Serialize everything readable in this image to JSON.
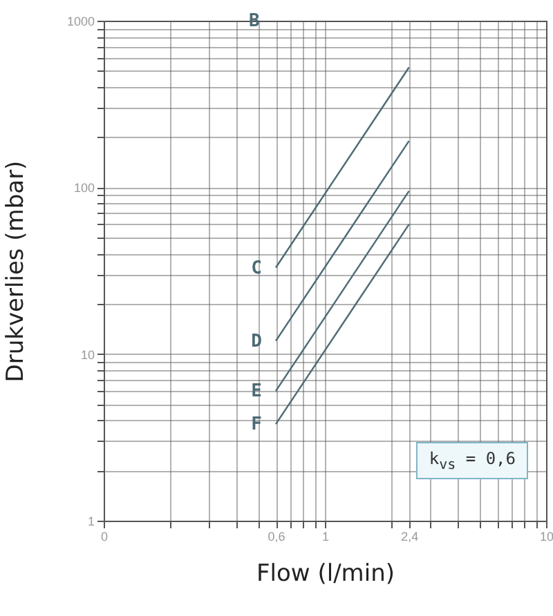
{
  "chart_data": {
    "type": "line",
    "xlabel": "Flow (l/min)",
    "ylabel": "Drukverlies (mbar)",
    "log": "xy",
    "grid": true,
    "marker": "none",
    "x": [
      0.6,
      2.4
    ],
    "series": [
      {
        "name": "C",
        "color": "#4d6a75",
        "values": [
          33,
          525
        ]
      },
      {
        "name": "D",
        "color": "#4d6a75",
        "values": [
          12,
          190
        ]
      },
      {
        "name": "E",
        "color": "#4d6a75",
        "values": [
          6,
          95
        ]
      },
      {
        "name": "F",
        "color": "#4d6a75",
        "values": [
          3.8,
          60
        ]
      }
    ],
    "xlim": [
      0.1,
      10
    ],
    "xticks": [
      {
        "value": 0.1,
        "label": "0"
      },
      {
        "value": 0.2,
        "label": null
      },
      {
        "value": 0.3,
        "label": null
      },
      {
        "value": 0.4,
        "label": null
      },
      {
        "value": 0.5,
        "label": null
      },
      {
        "value": 0.6,
        "label": "0,6"
      },
      {
        "value": 0.7,
        "label": null
      },
      {
        "value": 0.8,
        "label": null
      },
      {
        "value": 0.9,
        "label": null
      },
      1,
      {
        "value": 2,
        "label": null
      },
      {
        "value": 2.4,
        "label": "2,4"
      },
      {
        "value": 3,
        "label": null
      },
      {
        "value": 4,
        "label": null
      },
      {
        "value": 5,
        "label": null
      },
      {
        "value": 6,
        "label": null
      },
      {
        "value": 7,
        "label": null
      },
      {
        "value": 8,
        "label": null
      },
      {
        "value": 9,
        "label": null
      },
      10
    ],
    "ylim": [
      1,
      1000
    ],
    "yticks": [
      1,
      {
        "value": 2,
        "label": null
      },
      {
        "value": 3,
        "label": null
      },
      {
        "value": 4,
        "label": null
      },
      {
        "value": 5,
        "label": null
      },
      {
        "value": 6,
        "label": null
      },
      {
        "value": 7,
        "label": null
      },
      {
        "value": 8,
        "label": null
      },
      {
        "value": 9,
        "label": null
      },
      10,
      {
        "value": 20,
        "label": null
      },
      {
        "value": 30,
        "label": null
      },
      {
        "value": 40,
        "label": null
      },
      {
        "value": 50,
        "label": null
      },
      {
        "value": 60,
        "label": null
      },
      {
        "value": 70,
        "label": null
      },
      {
        "value": 80,
        "label": null
      },
      {
        "value": 90,
        "label": null
      },
      100,
      {
        "value": 200,
        "label": null
      },
      {
        "value": 300,
        "label": null
      },
      {
        "value": 400,
        "label": null
      },
      {
        "value": 500,
        "label": null
      },
      {
        "value": 600,
        "label": null
      },
      {
        "value": 700,
        "label": null
      },
      {
        "value": 800,
        "label": null
      },
      {
        "value": 900,
        "label": null
      },
      1000
    ],
    "annotations": [
      "B",
      "k$_{vs}$ = 0,6"
    ]
  }
}
